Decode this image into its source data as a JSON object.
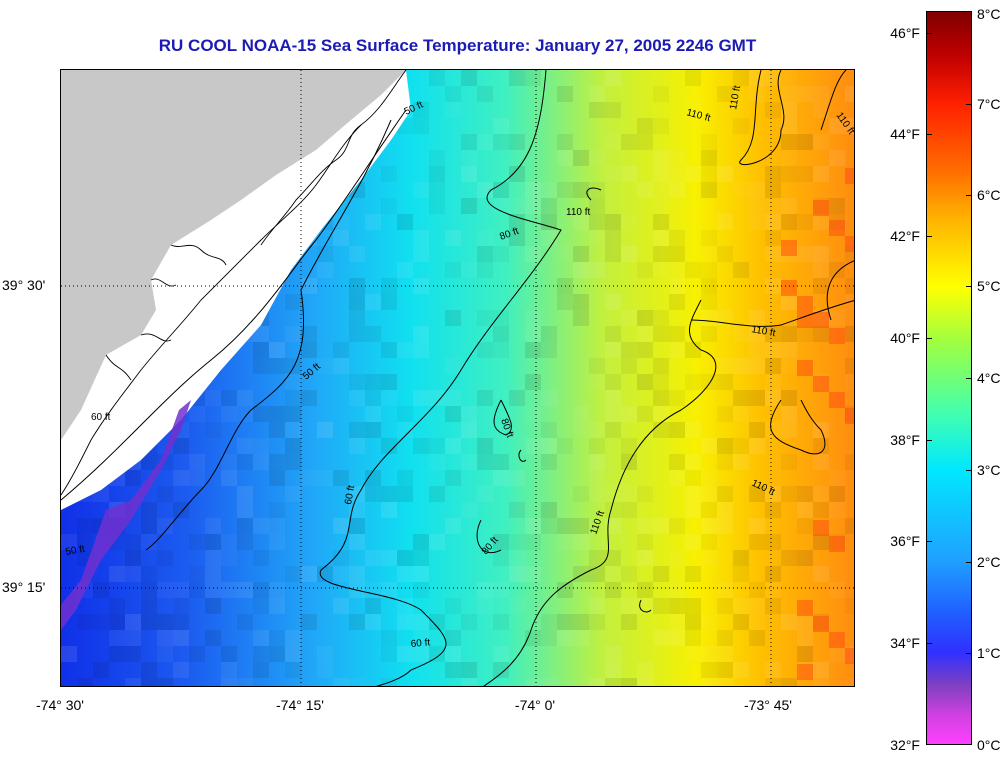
{
  "title": "RU COOL  NOAA-15  Sea Surface Temperature:  January 27, 2005 2246 GMT",
  "map": {
    "lon_labels": [
      "-74° 30'",
      "-74° 15'",
      "-74° 0'",
      "-73° 45'"
    ],
    "lat_labels": [
      "39° 30'",
      "39° 15'"
    ],
    "contour_labels": [
      "50 ft",
      "50 ft",
      "50 ft",
      "60 ft",
      "60 ft",
      "60 ft",
      "80 ft",
      "80 ft",
      "80 ft",
      "110 ft",
      "110 ft",
      "110 ft",
      "110 ft",
      "110 ft",
      "110 ft",
      "110 ft"
    ],
    "land_color": "#c8c8c8",
    "missing_color": "#ffffff"
  },
  "colorbar": {
    "fahrenheit_labels": [
      "46°F",
      "44°F",
      "42°F",
      "40°F",
      "38°F",
      "36°F",
      "34°F",
      "32°F"
    ],
    "celsius_labels": [
      "8°C",
      "7°C",
      "6°C",
      "5°C",
      "4°C",
      "3°C",
      "2°C",
      "1°C",
      "0°C"
    ],
    "range_celsius": [
      0,
      8
    ],
    "range_fahrenheit": [
      32,
      46.4
    ]
  }
}
